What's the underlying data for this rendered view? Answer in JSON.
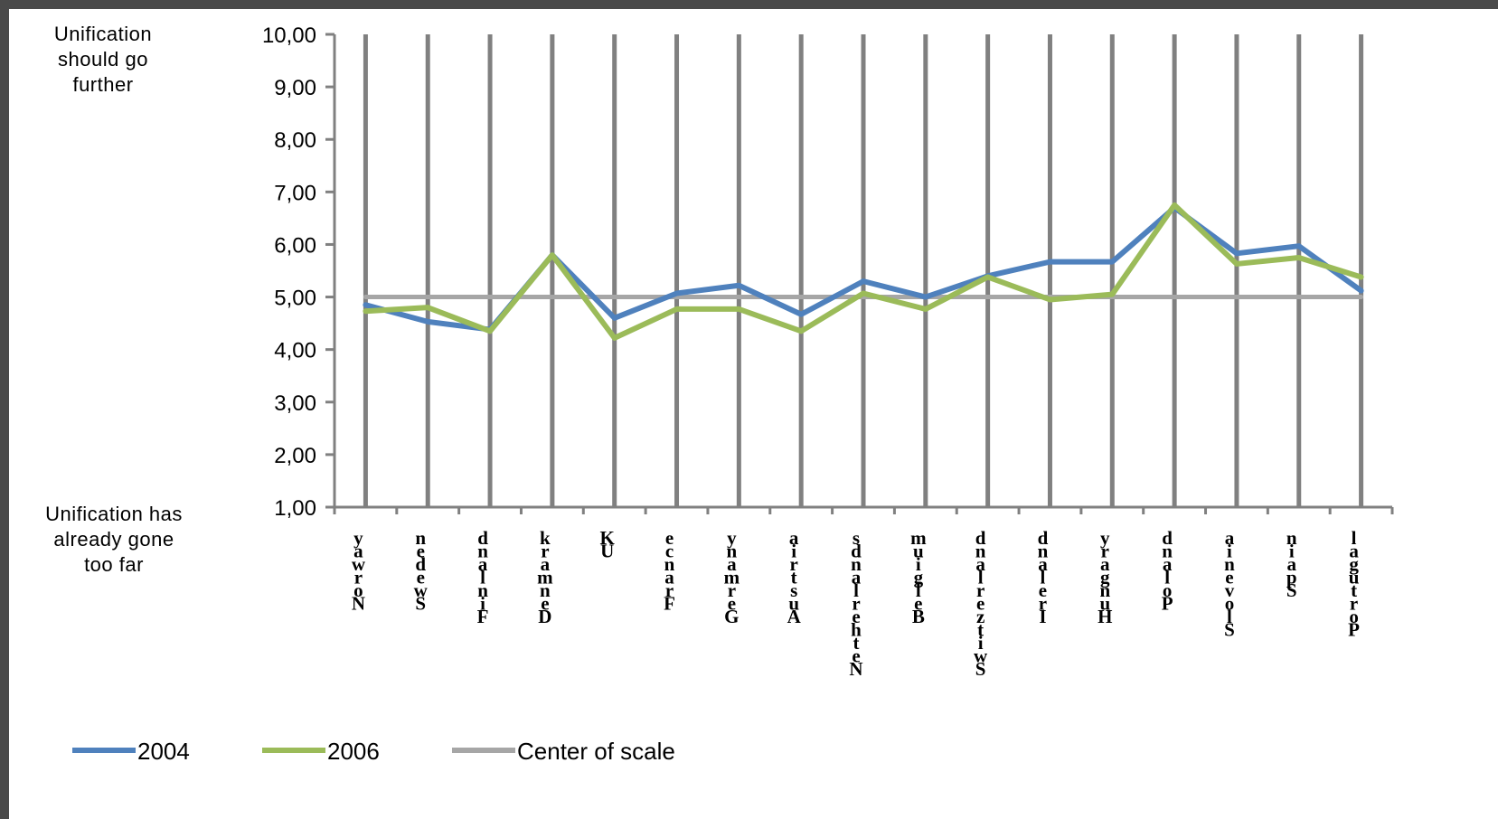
{
  "chart_data": {
    "type": "line",
    "categories": [
      "Norway",
      "Sweden",
      "Finland",
      "Denmark",
      "UK",
      "France",
      "Germany",
      "Austria",
      "Netherlands",
      "Belgium",
      "Switzerland",
      "Ireland",
      "Hungary",
      "Poland",
      "Slovenia",
      "Spain",
      "Portugal"
    ],
    "category_labels_rendered": [
      "yawroN",
      "nedewS",
      "dnalniF",
      "kramneD",
      "KU",
      "ecnarF",
      "ynamreG",
      "airtsuA",
      "sdnalrehteN",
      "muigleB",
      "dnalreztiwS",
      "dnalerI",
      "yragnuH",
      "dnaloP",
      "ainevolS",
      "niapS",
      "lagutroP"
    ],
    "series": [
      {
        "name": "2004",
        "color": "#4f81bd",
        "values": [
          4.85,
          4.53,
          4.38,
          5.8,
          4.6,
          5.07,
          5.22,
          4.67,
          5.3,
          5.0,
          5.4,
          5.67,
          5.67,
          6.7,
          5.83,
          5.97,
          5.12
        ]
      },
      {
        "name": "2006",
        "color": "#9bbb59",
        "values": [
          4.73,
          4.8,
          4.35,
          5.8,
          4.22,
          4.77,
          4.77,
          4.35,
          5.07,
          4.77,
          5.38,
          4.95,
          5.05,
          6.75,
          5.63,
          5.75,
          5.38
        ]
      },
      {
        "name": "Center of scale",
        "color": "#a6a6a6",
        "values": [
          5,
          5,
          5,
          5,
          5,
          5,
          5,
          5,
          5,
          5,
          5,
          5,
          5,
          5,
          5,
          5,
          5
        ]
      }
    ],
    "y_ticks": [
      "1,00",
      "2,00",
      "3,00",
      "4,00",
      "5,00",
      "6,00",
      "7,00",
      "8,00",
      "9,00",
      "10,00"
    ],
    "ylim": [
      1,
      10
    ],
    "grid": "vertical",
    "legend_position": "bottom",
    "annotations": {
      "top": [
        "Unification",
        "should go",
        "further"
      ],
      "bottom": [
        "Unification has",
        "already gone",
        "too far"
      ]
    }
  }
}
